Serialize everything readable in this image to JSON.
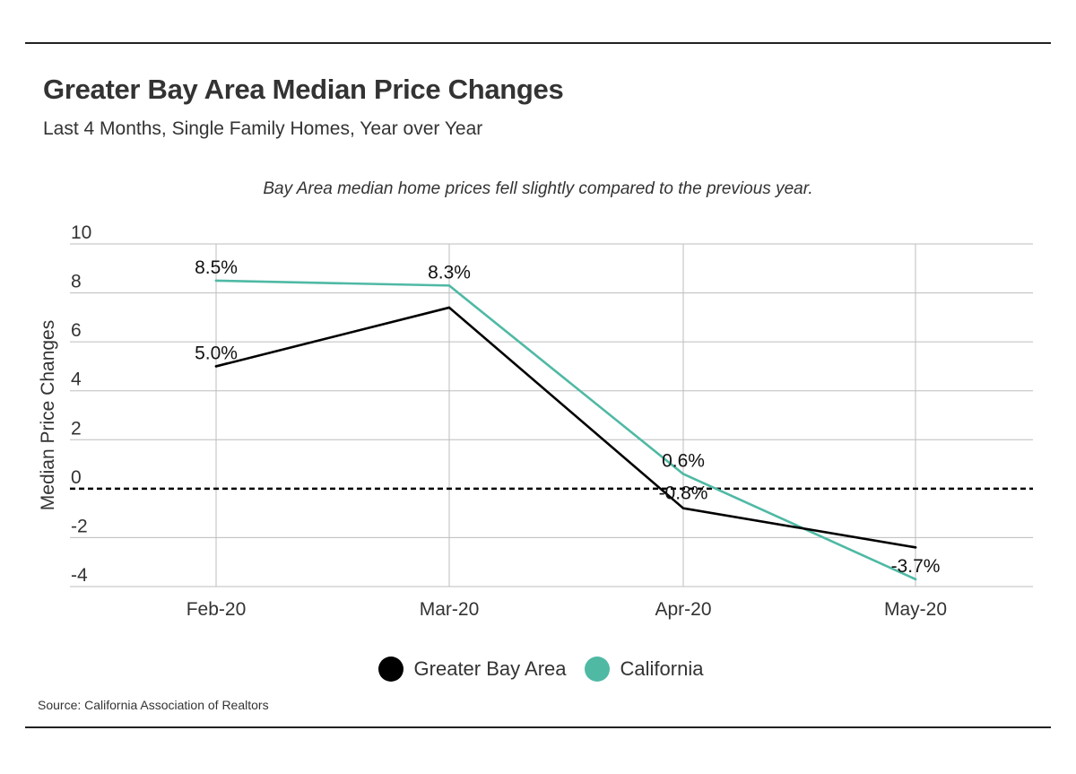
{
  "header": {
    "title": "Greater Bay Area Median Price Changes",
    "subtitle": "Last 4 Months, Single Family Homes, Year over Year"
  },
  "footer": {
    "source": "Source:  California Association of Realtors"
  },
  "chart_data": {
    "type": "line",
    "annotation": "Bay Area median home prices fell slightly compared to the previous year.",
    "ylabel": "Median Price Changes",
    "xlabel": "",
    "categories": [
      "Feb-20",
      "Mar-20",
      "Apr-20",
      "May-20"
    ],
    "ylim": [
      -4,
      10
    ],
    "yticks": [
      10,
      8,
      6,
      4,
      2,
      0,
      -2,
      -4
    ],
    "grid": true,
    "zero_line": "dashed",
    "legend": "bottom-center",
    "series": [
      {
        "name": "Greater Bay Area",
        "color": "#000000",
        "values": [
          5.0,
          7.4,
          -0.8,
          -2.4
        ],
        "labels": [
          "5.0%",
          "",
          "-0.8%",
          ""
        ]
      },
      {
        "name": "California",
        "color": "#4fb9a4",
        "values": [
          8.5,
          8.3,
          0.6,
          -3.7
        ],
        "labels": [
          "8.5%",
          "8.3%",
          "0.6%",
          "-3.7%"
        ]
      }
    ]
  }
}
